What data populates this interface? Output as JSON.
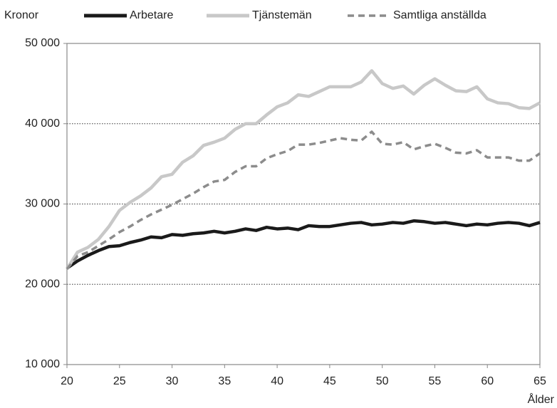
{
  "chart_data": {
    "type": "line",
    "ylabel": "Kronor",
    "xlabel": "Ålder",
    "x": [
      20,
      21,
      22,
      23,
      24,
      25,
      26,
      27,
      28,
      29,
      30,
      31,
      32,
      33,
      34,
      35,
      36,
      37,
      38,
      39,
      40,
      41,
      42,
      43,
      44,
      45,
      46,
      47,
      48,
      49,
      50,
      51,
      52,
      53,
      54,
      55,
      56,
      57,
      58,
      59,
      60,
      61,
      62,
      63,
      64,
      65
    ],
    "series": [
      {
        "name": "Arbetare",
        "color": "#1a1a1a",
        "dash": false,
        "values": [
          22000,
          22900,
          23600,
          24200,
          24700,
          24800,
          25200,
          25500,
          25900,
          25800,
          26200,
          26100,
          26300,
          26400,
          26600,
          26400,
          26600,
          26900,
          26700,
          27100,
          26900,
          27000,
          26800,
          27300,
          27200,
          27200,
          27400,
          27600,
          27700,
          27400,
          27500,
          27700,
          27600,
          27900,
          27800,
          27600,
          27700,
          27500,
          27300,
          27500,
          27400,
          27600,
          27700,
          27600,
          27300,
          27700
        ]
      },
      {
        "name": "Tjänstemän",
        "color": "#c8c8c8",
        "dash": false,
        "values": [
          21900,
          24000,
          24600,
          25600,
          27200,
          29200,
          30200,
          31000,
          32000,
          33400,
          33700,
          35200,
          36000,
          37300,
          37700,
          38200,
          39300,
          40000,
          40000,
          41100,
          42100,
          42600,
          43600,
          43400,
          44000,
          44600,
          44600,
          44600,
          45200,
          46600,
          45000,
          44400,
          44700,
          43700,
          44800,
          45600,
          44800,
          44100,
          44000,
          44600,
          43100,
          42600,
          42500,
          42000,
          41900,
          42600
        ]
      },
      {
        "name": "Samtliga anställda",
        "color": "#8c8c8c",
        "dash": true,
        "values": [
          21900,
          23500,
          24000,
          24800,
          25600,
          26500,
          27200,
          28000,
          28700,
          29300,
          29900,
          30600,
          31300,
          32100,
          32800,
          33000,
          34000,
          34700,
          34700,
          35700,
          36200,
          36600,
          37400,
          37400,
          37600,
          37900,
          38200,
          38000,
          37900,
          39000,
          37500,
          37400,
          37700,
          36800,
          37200,
          37500,
          37000,
          36400,
          36300,
          36700,
          35800,
          35800,
          35800,
          35400,
          35400,
          36300
        ]
      }
    ],
    "xlim": [
      20,
      65
    ],
    "xticks": [
      20,
      25,
      30,
      35,
      40,
      45,
      50,
      55,
      60,
      65
    ],
    "ylim": [
      10000,
      50000
    ],
    "yticks": [
      {
        "value": 10000,
        "label": "10 000"
      },
      {
        "value": 20000,
        "label": "20 000"
      },
      {
        "value": 30000,
        "label": "30 000"
      },
      {
        "value": 40000,
        "label": "40 000"
      },
      {
        "value": 50000,
        "label": "50 000"
      }
    ],
    "grid": true,
    "legend": "top"
  }
}
